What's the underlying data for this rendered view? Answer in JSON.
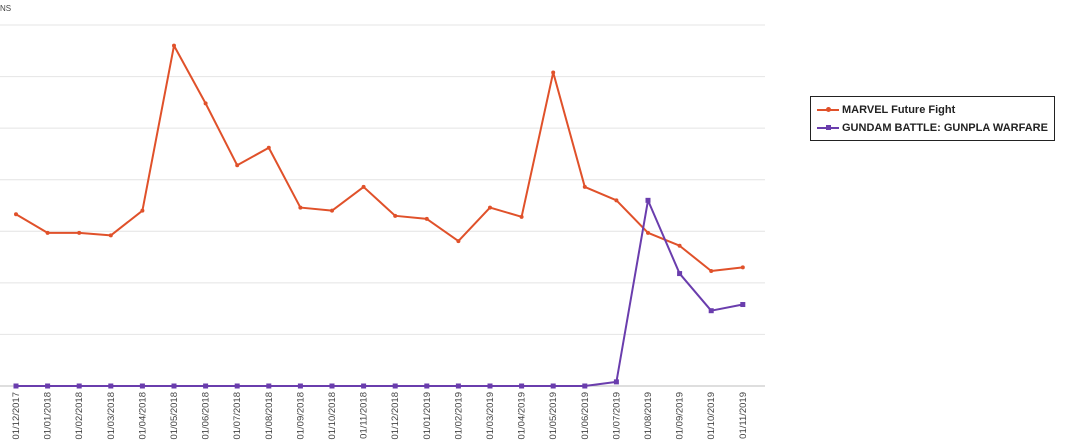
{
  "chart_data": {
    "type": "line",
    "ylabel_fragment": "NS",
    "ylim": [
      0,
      700
    ],
    "grid": true,
    "legend_position": "right",
    "x": [
      "01/12/2017",
      "01/01/2018",
      "01/02/2018",
      "01/03/2018",
      "01/04/2018",
      "01/05/2018",
      "01/06/2018",
      "01/07/2018",
      "01/08/2018",
      "01/09/2018",
      "01/10/2018",
      "01/11/2018",
      "01/12/2018",
      "01/01/2019",
      "01/02/2019",
      "01/03/2019",
      "01/04/2019",
      "01/05/2019",
      "01/06/2019",
      "01/07/2019",
      "01/08/2019",
      "01/09/2019",
      "01/10/2019",
      "01/11/2019"
    ],
    "series": [
      {
        "name": "MARVEL Future Fight",
        "color": "#e0512a",
        "marker": "dot",
        "values": [
          333,
          297,
          297,
          292,
          340,
          660,
          548,
          428,
          462,
          346,
          340,
          386,
          330,
          324,
          281,
          346,
          328,
          608,
          386,
          360,
          297,
          272,
          223,
          230
        ]
      },
      {
        "name": "GUNDAM BATTLE: GUNPLA WARFARE",
        "color": "#6a3dad",
        "marker": "square",
        "values": [
          0,
          0,
          0,
          0,
          0,
          0,
          0,
          0,
          0,
          0,
          0,
          0,
          0,
          0,
          0,
          0,
          0,
          0,
          0,
          8,
          360,
          218,
          146,
          158
        ]
      }
    ]
  }
}
